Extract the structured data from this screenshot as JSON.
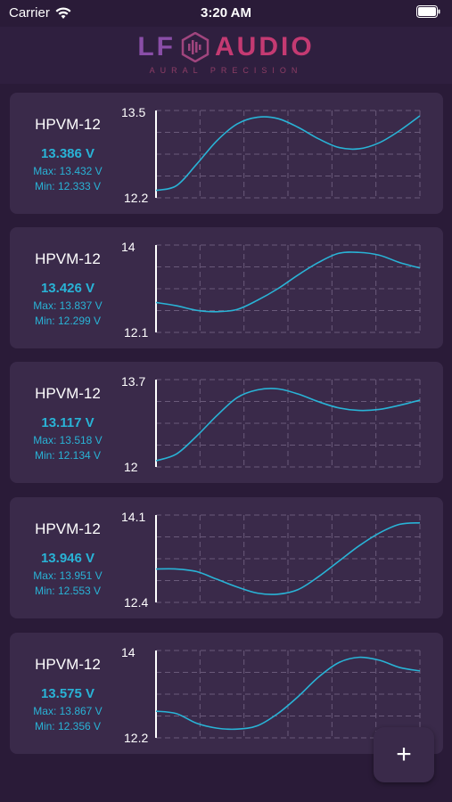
{
  "status": {
    "carrier": "Carrier",
    "time": "3:20 AM"
  },
  "header": {
    "logo_left": "LF",
    "logo_right": "AUDIO",
    "tagline": "AURAL PRECISION"
  },
  "devices": [
    {
      "name": "HPVM-12",
      "value": "13.386 V",
      "max": "Max: 13.432 V",
      "min": "Min: 12.333 V",
      "ymax": "13.5",
      "ymin": "12.2",
      "series": [
        12.31,
        12.38,
        12.7,
        13.05,
        13.3,
        13.4,
        13.38,
        13.25,
        13.08,
        12.95,
        12.93,
        13.02,
        13.2,
        13.42
      ]
    },
    {
      "name": "HPVM-12",
      "value": "13.426 V",
      "max": "Max: 13.837 V",
      "min": "Min: 12.299 V",
      "ymax": "14",
      "ymin": "12.1",
      "series": [
        12.75,
        12.68,
        12.58,
        12.55,
        12.6,
        12.8,
        13.05,
        13.35,
        13.62,
        13.82,
        13.84,
        13.78,
        13.62,
        13.5
      ]
    },
    {
      "name": "HPVM-12",
      "value": "13.117 V",
      "max": "Max: 13.518 V",
      "min": "Min: 12.134 V",
      "ymax": "13.7",
      "ymin": "12",
      "series": [
        12.12,
        12.25,
        12.6,
        13.0,
        13.35,
        13.5,
        13.52,
        13.42,
        13.27,
        13.15,
        13.1,
        13.12,
        13.2,
        13.3
      ]
    },
    {
      "name": "HPVM-12",
      "value": "13.946 V",
      "max": "Max: 13.951 V",
      "min": "Min: 12.553 V",
      "ymax": "14.1",
      "ymin": "12.4",
      "series": [
        13.05,
        13.05,
        13.0,
        12.85,
        12.7,
        12.58,
        12.56,
        12.65,
        12.9,
        13.2,
        13.5,
        13.75,
        13.92,
        13.95
      ]
    },
    {
      "name": "HPVM-12",
      "value": "13.575 V",
      "max": "Max: 13.867 V",
      "min": "Min: 12.356 V",
      "ymax": "14",
      "ymin": "12.2",
      "series": [
        12.75,
        12.7,
        12.5,
        12.4,
        12.38,
        12.45,
        12.7,
        13.05,
        13.45,
        13.75,
        13.86,
        13.8,
        13.65,
        13.58
      ]
    }
  ],
  "fab": {
    "label": "+"
  },
  "colors": {
    "line": "#29b3d6",
    "grid": "#6a5a7a",
    "card": "#3a2a4a",
    "background": "#2a1b38"
  }
}
